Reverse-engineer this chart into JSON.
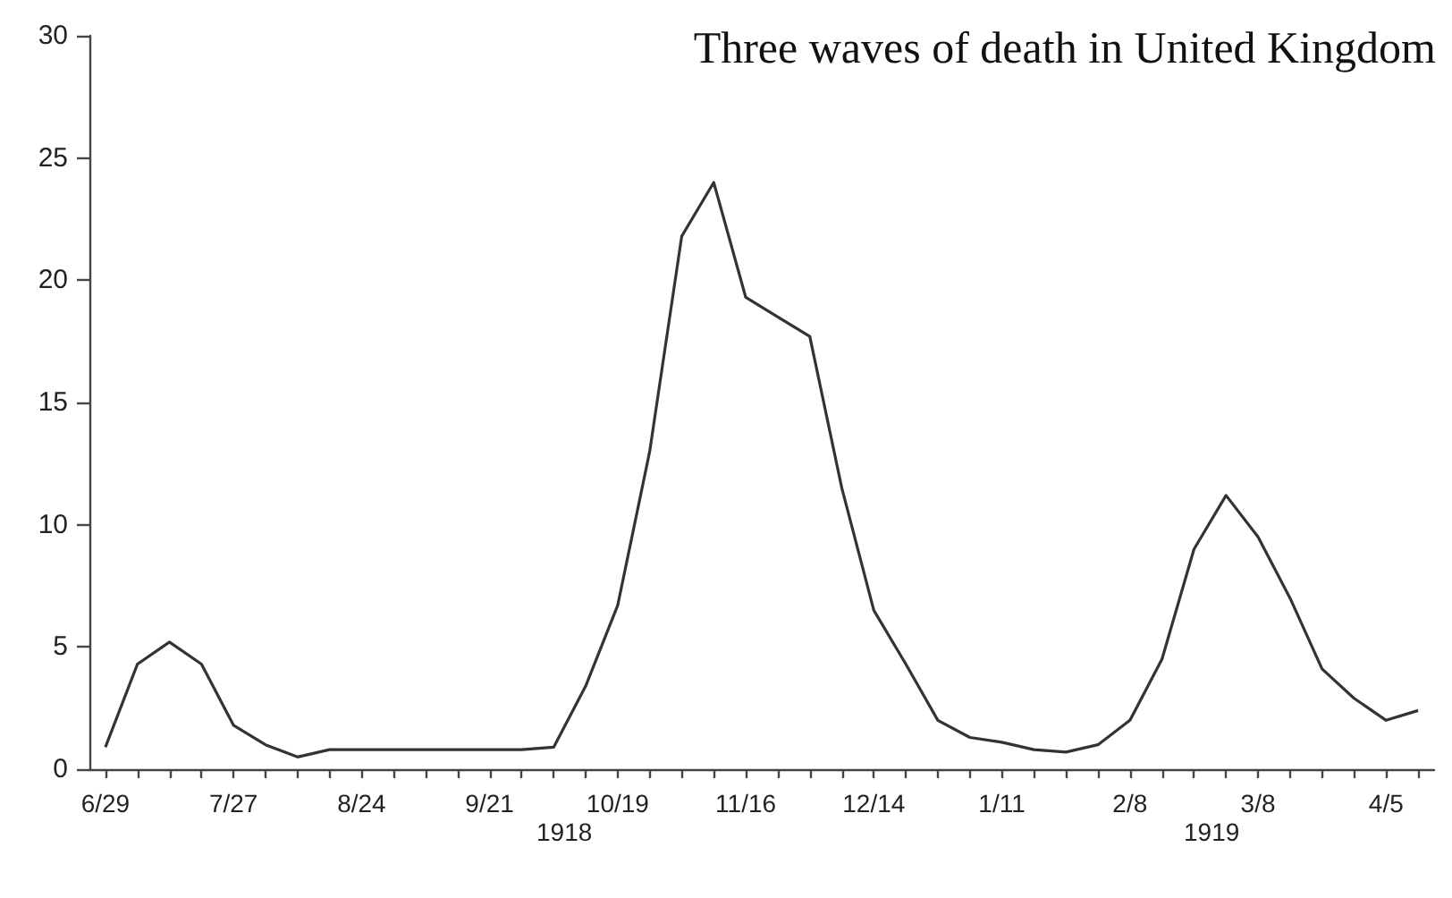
{
  "chart_data": {
    "type": "line",
    "title": "Three waves of death in United Kingdom",
    "categories": [
      "6/29",
      null,
      null,
      null,
      "7/27",
      null,
      null,
      null,
      "8/24",
      null,
      null,
      null,
      "9/21",
      null,
      null,
      null,
      "10/19",
      null,
      null,
      null,
      "11/16",
      null,
      null,
      null,
      "12/14",
      null,
      null,
      null,
      "1/11",
      null,
      null,
      null,
      "2/8",
      null,
      null,
      null,
      "3/8",
      null,
      null,
      null,
      "4/5",
      null
    ],
    "series": [
      {
        "color": "#333333",
        "values": [
          0.9,
          4.3,
          5.2,
          4.3,
          1.8,
          1.0,
          0.5,
          0.8,
          0.8,
          0.8,
          0.8,
          0.8,
          0.8,
          0.8,
          0.9,
          3.4,
          6.7,
          13.0,
          21.8,
          24.0,
          19.3,
          18.5,
          17.7,
          11.5,
          6.5,
          4.3,
          2.0,
          1.3,
          1.1,
          0.8,
          0.7,
          1.0,
          2.0,
          4.5,
          9.0,
          11.2,
          9.5,
          7.0,
          4.1,
          2.9,
          2.0,
          2.4
        ]
      }
    ],
    "ylim": [
      0,
      30
    ],
    "yticks": [
      0,
      5,
      10,
      15,
      20,
      25,
      30
    ],
    "grid": false,
    "marker": "none",
    "line_style": "solid",
    "annotations": [
      "1918",
      "1919"
    ]
  }
}
